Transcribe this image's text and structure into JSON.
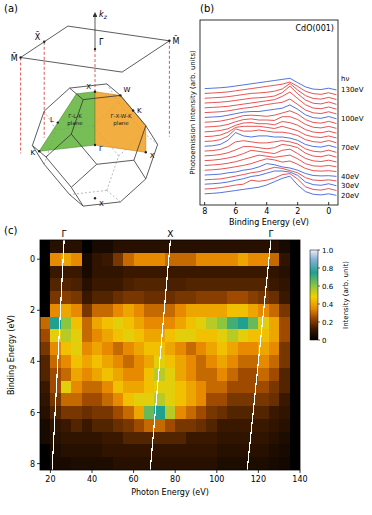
{
  "diagram": {
    "panel_label": "(a)",
    "axis_label": {
      "text": "k",
      "sub": "z"
    },
    "surface_points": [
      "Γ̄",
      "X̄",
      "M̄",
      "M̄"
    ],
    "bulk_points": [
      "Γ",
      "X",
      "W",
      "K",
      "X",
      "L",
      "K",
      "X"
    ],
    "planes": [
      "Γ-L-K plane",
      "Γ-X-W-K plane"
    ]
  },
  "chart_data": [
    {
      "type": "line",
      "panel_label": "(b)",
      "title": "CdO(001)",
      "x_label": "Binding Energy (eV)",
      "y_label": "Photoemission Intensity (arb. units)",
      "legend_title": "hν",
      "tick_labels": "x",
      "x": [
        8,
        7.5,
        7,
        6.5,
        6,
        5.5,
        5,
        4.5,
        4,
        3.5,
        3,
        2.5,
        2,
        1.5,
        1,
        0.5,
        0,
        -0.5
      ],
      "xlim": [
        8.3,
        -0.6
      ],
      "xticks": [
        8,
        6,
        4,
        2,
        0
      ],
      "series": [
        {
          "name": "20eV",
          "color": "#2a4fd0",
          "values": [
            0.1,
            0.12,
            0.15,
            0.2,
            0.25,
            0.3,
            0.35,
            0.4,
            0.5,
            0.65,
            0.8,
            0.9,
            0.5,
            0.2,
            0.08,
            0.05,
            0.1,
            0.03
          ]
        },
        {
          "color": "#e02828",
          "values": [
            0.1,
            0.12,
            0.16,
            0.22,
            0.28,
            0.32,
            0.5,
            0.45,
            0.5,
            0.6,
            0.75,
            0.8,
            0.55,
            0.2,
            0.08,
            0.05,
            0.12,
            0.03
          ]
        },
        {
          "name": "30eV",
          "color": "#2a4fd0",
          "values": [
            0.1,
            0.12,
            0.15,
            0.2,
            0.28,
            0.35,
            0.45,
            0.5,
            0.6,
            0.7,
            0.7,
            0.65,
            0.5,
            0.2,
            0.08,
            0.05,
            0.12,
            0.03
          ]
        },
        {
          "color": "#e02828",
          "values": [
            0.08,
            0.1,
            0.12,
            0.18,
            0.25,
            0.32,
            0.4,
            0.45,
            0.55,
            0.65,
            0.6,
            0.5,
            0.4,
            0.18,
            0.07,
            0.05,
            0.08,
            0.03
          ]
        },
        {
          "name": "40eV",
          "color": "#2a4fd0",
          "values": [
            0.08,
            0.1,
            0.12,
            0.18,
            0.22,
            0.3,
            0.35,
            0.45,
            0.6,
            0.55,
            0.45,
            0.4,
            0.3,
            0.15,
            0.06,
            0.04,
            0.05,
            0.02
          ]
        },
        {
          "color": "#e02828",
          "values": [
            0.08,
            0.1,
            0.13,
            0.18,
            0.24,
            0.3,
            0.38,
            0.5,
            0.6,
            0.55,
            0.45,
            0.5,
            0.35,
            0.16,
            0.06,
            0.04,
            0.06,
            0.02
          ]
        },
        {
          "color": "#e02828",
          "values": [
            0.08,
            0.1,
            0.13,
            0.18,
            0.25,
            0.35,
            0.45,
            0.55,
            0.5,
            0.45,
            0.5,
            0.55,
            0.38,
            0.16,
            0.06,
            0.04,
            0.08,
            0.02
          ]
        },
        {
          "color": "#e02828",
          "values": [
            0.08,
            0.1,
            0.14,
            0.2,
            0.28,
            0.4,
            0.55,
            0.5,
            0.45,
            0.4,
            0.55,
            0.6,
            0.4,
            0.18,
            0.07,
            0.04,
            0.1,
            0.02
          ]
        },
        {
          "color": "#e02828",
          "values": [
            0.08,
            0.1,
            0.14,
            0.22,
            0.35,
            0.5,
            0.5,
            0.45,
            0.4,
            0.45,
            0.6,
            0.55,
            0.45,
            0.2,
            0.07,
            0.04,
            0.12,
            0.02
          ]
        },
        {
          "color": "#e02828",
          "values": [
            0.08,
            0.1,
            0.15,
            0.28,
            0.5,
            0.55,
            0.5,
            0.45,
            0.45,
            0.5,
            0.55,
            0.5,
            0.4,
            0.18,
            0.07,
            0.04,
            0.12,
            0.02
          ]
        },
        {
          "name": "70eV",
          "color": "#2a4fd0",
          "values": [
            0.08,
            0.1,
            0.16,
            0.35,
            0.7,
            0.55,
            0.5,
            0.55,
            0.55,
            0.5,
            0.5,
            0.45,
            0.35,
            0.16,
            0.07,
            0.04,
            0.12,
            0.02
          ]
        },
        {
          "color": "#e02828",
          "values": [
            0.08,
            0.1,
            0.16,
            0.32,
            0.65,
            0.55,
            0.55,
            0.6,
            0.55,
            0.5,
            0.5,
            0.45,
            0.35,
            0.16,
            0.07,
            0.04,
            0.12,
            0.02
          ]
        },
        {
          "color": "#e02828",
          "values": [
            0.08,
            0.1,
            0.15,
            0.28,
            0.5,
            0.55,
            0.55,
            0.55,
            0.5,
            0.45,
            0.55,
            0.45,
            0.35,
            0.16,
            0.07,
            0.04,
            0.11,
            0.02
          ]
        },
        {
          "color": "#e02828",
          "values": [
            0.08,
            0.1,
            0.14,
            0.22,
            0.38,
            0.48,
            0.5,
            0.45,
            0.45,
            0.4,
            0.55,
            0.5,
            0.38,
            0.18,
            0.07,
            0.04,
            0.11,
            0.02
          ]
        },
        {
          "color": "#e02828",
          "values": [
            0.08,
            0.1,
            0.13,
            0.2,
            0.32,
            0.42,
            0.45,
            0.4,
            0.4,
            0.38,
            0.55,
            0.55,
            0.42,
            0.2,
            0.07,
            0.04,
            0.11,
            0.02
          ]
        },
        {
          "color": "#e02828",
          "values": [
            0.08,
            0.1,
            0.13,
            0.2,
            0.28,
            0.38,
            0.4,
            0.38,
            0.35,
            0.4,
            0.5,
            0.6,
            0.45,
            0.2,
            0.07,
            0.04,
            0.12,
            0.02
          ]
        },
        {
          "name": "100eV",
          "color": "#2a4fd0",
          "values": [
            0.08,
            0.1,
            0.12,
            0.18,
            0.25,
            0.32,
            0.35,
            0.35,
            0.4,
            0.45,
            0.5,
            0.65,
            0.45,
            0.2,
            0.07,
            0.04,
            0.12,
            0.02
          ]
        },
        {
          "color": "#e02828",
          "values": [
            0.08,
            0.1,
            0.12,
            0.16,
            0.22,
            0.28,
            0.32,
            0.38,
            0.45,
            0.5,
            0.55,
            0.7,
            0.45,
            0.2,
            0.07,
            0.04,
            0.12,
            0.02
          ]
        },
        {
          "color": "#e02828",
          "values": [
            0.08,
            0.1,
            0.12,
            0.15,
            0.2,
            0.25,
            0.3,
            0.35,
            0.4,
            0.45,
            0.6,
            0.8,
            0.5,
            0.22,
            0.07,
            0.04,
            0.12,
            0.02
          ]
        },
        {
          "color": "#e02828",
          "values": [
            0.08,
            0.1,
            0.12,
            0.15,
            0.2,
            0.25,
            0.3,
            0.32,
            0.35,
            0.4,
            0.55,
            0.85,
            0.5,
            0.22,
            0.07,
            0.04,
            0.13,
            0.02
          ]
        },
        {
          "color": "#e02828",
          "values": [
            0.08,
            0.1,
            0.12,
            0.15,
            0.2,
            0.25,
            0.3,
            0.32,
            0.35,
            0.4,
            0.5,
            0.75,
            0.45,
            0.2,
            0.07,
            0.04,
            0.12,
            0.02
          ]
        },
        {
          "color": "#e02828",
          "values": [
            0.08,
            0.1,
            0.12,
            0.15,
            0.2,
            0.25,
            0.3,
            0.35,
            0.4,
            0.45,
            0.5,
            0.6,
            0.4,
            0.18,
            0.07,
            0.04,
            0.11,
            0.02
          ]
        },
        {
          "name": "130eV",
          "color": "#2a4fd0",
          "values": [
            0.08,
            0.1,
            0.12,
            0.15,
            0.2,
            0.25,
            0.3,
            0.35,
            0.4,
            0.45,
            0.5,
            0.55,
            0.35,
            0.16,
            0.06,
            0.04,
            0.1,
            0.02
          ]
        }
      ]
    },
    {
      "type": "heatmap",
      "panel_label": "(c)",
      "x_label": "Photon Energy (eV)",
      "y_label": "Binding Energy (eV)",
      "xlim": [
        15,
        140
      ],
      "xticks": [
        20,
        40,
        60,
        80,
        100,
        120,
        140
      ],
      "ylim": [
        8.25,
        -0.75
      ],
      "yticks": [
        0,
        2,
        4,
        6,
        8
      ],
      "x": [
        17.5,
        22.5,
        27.5,
        32.5,
        37.5,
        42.5,
        47.5,
        52.5,
        57.5,
        62.5,
        67.5,
        72.5,
        77.5,
        82.5,
        87.5,
        92.5,
        97.5,
        102.5,
        107.5,
        112.5,
        117.5,
        122.5,
        127.5,
        132.5,
        137.5
      ],
      "y": [
        -0.5,
        0,
        0.5,
        1,
        1.5,
        2,
        2.5,
        3,
        3.5,
        4,
        4.5,
        5,
        5.5,
        6,
        6.5,
        7,
        7.5,
        8
      ],
      "cells": [
        [
          0,
          0.08,
          0.08,
          0.08,
          0,
          0.05,
          0.05,
          0.08,
          0.08,
          0.08,
          0.08,
          0.08,
          0.08,
          0.08,
          0.08,
          0.08,
          0.08,
          0.08,
          0.08,
          0.08,
          0.08,
          0.08,
          0.08,
          0.05,
          0
        ],
        [
          0,
          0.35,
          0.4,
          0.35,
          0.05,
          0.1,
          0.12,
          0.2,
          0.3,
          0.35,
          0.35,
          0.35,
          0.3,
          0.3,
          0.3,
          0.35,
          0.35,
          0.35,
          0.35,
          0.4,
          0.35,
          0.35,
          0.3,
          0.1,
          0
        ],
        [
          0,
          0.12,
          0.12,
          0.12,
          0.05,
          0.1,
          0.1,
          0.1,
          0.12,
          0.12,
          0.12,
          0.12,
          0.12,
          0.12,
          0.12,
          0.12,
          0.12,
          0.12,
          0.12,
          0.12,
          0.12,
          0.12,
          0.1,
          0.08,
          0
        ],
        [
          0,
          0.15,
          0.15,
          0.14,
          0.08,
          0.12,
          0.12,
          0.12,
          0.14,
          0.15,
          0.15,
          0.15,
          0.14,
          0.14,
          0.15,
          0.15,
          0.15,
          0.15,
          0.15,
          0.15,
          0.15,
          0.15,
          0.12,
          0.1,
          0
        ],
        [
          0,
          0.2,
          0.22,
          0.2,
          0.12,
          0.15,
          0.15,
          0.18,
          0.2,
          0.2,
          0.18,
          0.18,
          0.18,
          0.2,
          0.2,
          0.22,
          0.22,
          0.22,
          0.25,
          0.25,
          0.22,
          0.2,
          0.18,
          0.12,
          0
        ],
        [
          0,
          0.35,
          0.4,
          0.35,
          0.2,
          0.3,
          0.3,
          0.35,
          0.4,
          0.35,
          0.3,
          0.3,
          0.3,
          0.35,
          0.4,
          0.4,
          0.4,
          0.4,
          0.45,
          0.45,
          0.4,
          0.35,
          0.3,
          0.2,
          0
        ],
        [
          0.3,
          0.75,
          0.6,
          0.45,
          0.3,
          0.4,
          0.45,
          0.5,
          0.45,
          0.4,
          0.35,
          0.35,
          0.35,
          0.4,
          0.45,
          0.5,
          0.55,
          0.6,
          0.7,
          0.75,
          0.65,
          0.5,
          0.4,
          0.25,
          0
        ],
        [
          0.25,
          0.5,
          0.55,
          0.5,
          0.3,
          0.35,
          0.4,
          0.45,
          0.5,
          0.45,
          0.4,
          0.4,
          0.45,
          0.5,
          0.5,
          0.45,
          0.45,
          0.5,
          0.55,
          0.5,
          0.45,
          0.45,
          0.4,
          0.25,
          0
        ],
        [
          0.2,
          0.35,
          0.45,
          0.5,
          0.35,
          0.4,
          0.35,
          0.3,
          0.35,
          0.4,
          0.45,
          0.45,
          0.4,
          0.35,
          0.3,
          0.35,
          0.4,
          0.45,
          0.4,
          0.35,
          0.35,
          0.4,
          0.35,
          0.2,
          0
        ],
        [
          0.15,
          0.3,
          0.35,
          0.45,
          0.4,
          0.45,
          0.4,
          0.35,
          0.3,
          0.35,
          0.4,
          0.5,
          0.45,
          0.4,
          0.35,
          0.3,
          0.35,
          0.4,
          0.35,
          0.3,
          0.3,
          0.35,
          0.3,
          0.2,
          0
        ],
        [
          0.15,
          0.25,
          0.3,
          0.4,
          0.35,
          0.4,
          0.45,
          0.4,
          0.35,
          0.35,
          0.45,
          0.55,
          0.5,
          0.4,
          0.35,
          0.3,
          0.3,
          0.35,
          0.3,
          0.25,
          0.25,
          0.3,
          0.25,
          0.15,
          0
        ],
        [
          0.12,
          0.25,
          0.5,
          0.35,
          0.3,
          0.3,
          0.35,
          0.45,
          0.4,
          0.4,
          0.45,
          0.5,
          0.5,
          0.45,
          0.4,
          0.35,
          0.3,
          0.3,
          0.25,
          0.25,
          0.25,
          0.25,
          0.2,
          0.15,
          0
        ],
        [
          0.1,
          0.2,
          0.3,
          0.3,
          0.25,
          0.25,
          0.3,
          0.35,
          0.45,
          0.5,
          0.5,
          0.55,
          0.5,
          0.45,
          0.4,
          0.35,
          0.25,
          0.25,
          0.2,
          0.2,
          0.2,
          0.2,
          0.18,
          0.12,
          0
        ],
        [
          0.08,
          0.15,
          0.2,
          0.2,
          0.18,
          0.2,
          0.2,
          0.25,
          0.3,
          0.4,
          0.65,
          0.75,
          0.55,
          0.35,
          0.3,
          0.25,
          0.2,
          0.18,
          0.15,
          0.15,
          0.15,
          0.15,
          0.12,
          0.1,
          0
        ],
        [
          0.05,
          0.1,
          0.12,
          0.15,
          0.12,
          0.15,
          0.15,
          0.18,
          0.2,
          0.25,
          0.3,
          0.3,
          0.25,
          0.2,
          0.2,
          0.18,
          0.15,
          0.12,
          0.12,
          0.12,
          0.12,
          0.12,
          0.1,
          0.08,
          0
        ],
        [
          0.05,
          0.08,
          0.1,
          0.1,
          0.1,
          0.1,
          0.12,
          0.12,
          0.15,
          0.15,
          0.15,
          0.15,
          0.15,
          0.15,
          0.12,
          0.12,
          0.12,
          0.1,
          0.1,
          0.1,
          0.1,
          0.1,
          0.08,
          0.06,
          0
        ],
        [
          0,
          0.06,
          0.08,
          0.08,
          0.08,
          0.08,
          0.1,
          0.1,
          0.1,
          0.1,
          0.1,
          0.1,
          0.1,
          0.1,
          0.1,
          0.1,
          0.1,
          0.08,
          0.08,
          0.08,
          0.08,
          0.08,
          0.06,
          0.05,
          0
        ],
        [
          0,
          0.05,
          0.05,
          0.06,
          0.06,
          0.06,
          0.06,
          0.08,
          0.08,
          0.08,
          0.08,
          0.08,
          0.08,
          0.08,
          0.08,
          0.08,
          0.08,
          0.06,
          0.06,
          0.06,
          0.06,
          0.06,
          0.05,
          0.04,
          0
        ]
      ],
      "colorbar": {
        "label": "Intensity (arb. unit)",
        "range": [
          0,
          1
        ],
        "ticks": [
          0,
          0.2,
          0.4,
          0.6,
          0.8,
          {
            "value": 1,
            "label": "1.0"
          }
        ]
      },
      "annotations": [
        {
          "label": "Γ",
          "x": [
            26.6,
            20.8
          ],
          "y": [
            -0.75,
            8.25
          ]
        },
        {
          "label": "X",
          "x": [
            77.7,
            68
          ],
          "y": [
            -0.75,
            8.25
          ]
        },
        {
          "label": "Γ",
          "x": [
            126,
            114.6
          ],
          "y": [
            -0.75,
            8.25
          ]
        }
      ]
    }
  ]
}
